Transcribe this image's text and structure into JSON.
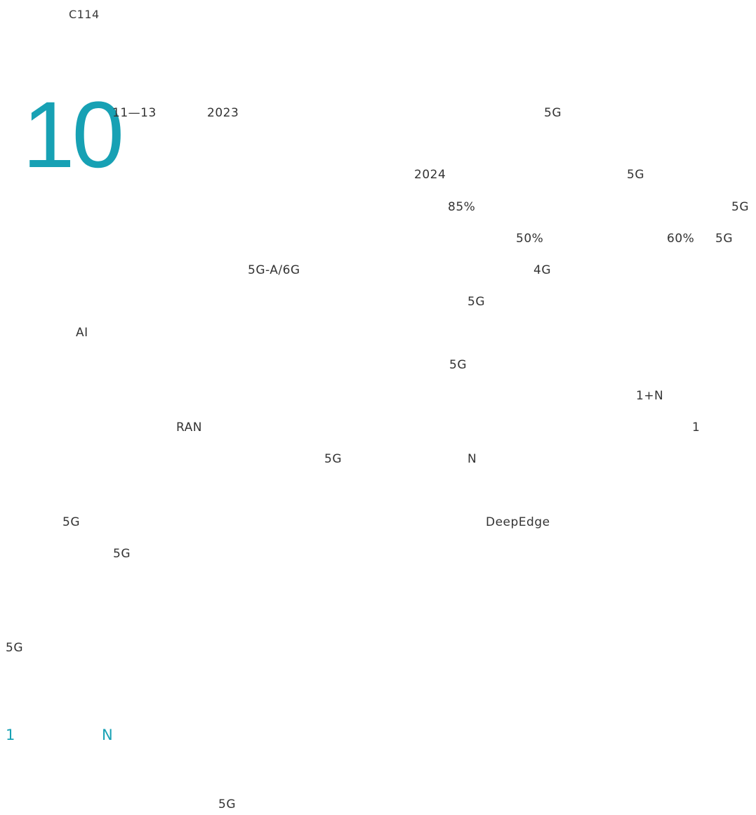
{
  "page_code": "C114",
  "accent_color": "#17a1b4",
  "chapter_number": "10",
  "lines": {
    "l1_date": "11—13",
    "l1_year": "2023",
    "l1_5g": "5G",
    "l2_year": "2024",
    "l2_5g": "5G",
    "l3_pct": "85%",
    "l3_5g": "5G",
    "l4_pct50": "50%",
    "l4_pct60": "60%",
    "l4_5g": "5G",
    "l5_5ga6g": "5G-A/6G",
    "l5_4g": "4G",
    "l6_5g": "5G",
    "l7_ai": "AI",
    "l8_5g": "5G",
    "l9_1n": "1+N",
    "l10_ran": "RAN",
    "l10_1": "1",
    "l11_5g": "5G",
    "l11_n": "N",
    "l12_5g": "5G",
    "l12_deepedge": "DeepEdge",
    "l13_5g": "5G",
    "l14_5g": "5G",
    "l16_5g": "5G"
  },
  "section_heading": {
    "number": "1",
    "letter": "N"
  }
}
